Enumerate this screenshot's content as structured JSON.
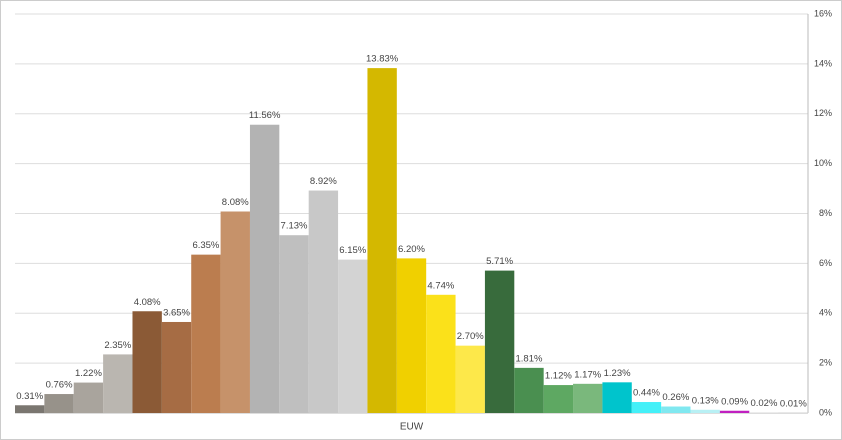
{
  "chart_data": {
    "type": "bar",
    "categories": [
      "EUW"
    ],
    "series": [
      {
        "color": "#7a7670",
        "values": [
          0.31
        ],
        "value_labels": [
          "0.31%"
        ]
      },
      {
        "color": "#97928a",
        "values": [
          0.76
        ],
        "value_labels": [
          "0.76%"
        ]
      },
      {
        "color": "#a9a49d",
        "values": [
          1.22
        ],
        "value_labels": [
          "1.22%"
        ]
      },
      {
        "color": "#bab6b0",
        "values": [
          2.35
        ],
        "value_labels": [
          "2.35%"
        ]
      },
      {
        "color": "#8b5a36",
        "values": [
          4.08
        ],
        "value_labels": [
          "4.08%"
        ]
      },
      {
        "color": "#a66c44",
        "values": [
          3.65
        ],
        "value_labels": [
          "3.65%"
        ]
      },
      {
        "color": "#bb7d4f",
        "values": [
          6.35
        ],
        "value_labels": [
          "6.35%"
        ]
      },
      {
        "color": "#c6926a",
        "values": [
          8.08
        ],
        "value_labels": [
          "8.08%"
        ]
      },
      {
        "color": "#b3b3b3",
        "values": [
          11.56
        ],
        "value_labels": [
          "11.56%"
        ]
      },
      {
        "color": "#bfbfbf",
        "values": [
          7.13
        ],
        "value_labels": [
          "7.13%"
        ]
      },
      {
        "color": "#c8c8c8",
        "values": [
          8.92
        ],
        "value_labels": [
          "8.92%"
        ]
      },
      {
        "color": "#d3d3d3",
        "values": [
          6.15
        ],
        "value_labels": [
          "6.15%"
        ]
      },
      {
        "color": "#d4b800",
        "values": [
          13.83
        ],
        "value_labels": [
          "13.83%"
        ]
      },
      {
        "color": "#f0d000",
        "values": [
          6.2
        ],
        "value_labels": [
          "6.20%"
        ]
      },
      {
        "color": "#fbe11a",
        "values": [
          4.74
        ],
        "value_labels": [
          "4.74%"
        ]
      },
      {
        "color": "#fde84a",
        "values": [
          2.7
        ],
        "value_labels": [
          "2.70%"
        ]
      },
      {
        "color": "#386b3c",
        "values": [
          5.71
        ],
        "value_labels": [
          "5.71%"
        ]
      },
      {
        "color": "#4a8f50",
        "values": [
          1.81
        ],
        "value_labels": [
          "1.81%"
        ]
      },
      {
        "color": "#5ea862",
        "values": [
          1.12
        ],
        "value_labels": [
          "1.12%"
        ]
      },
      {
        "color": "#7ab87c",
        "values": [
          1.17
        ],
        "value_labels": [
          "1.17%"
        ]
      },
      {
        "color": "#00c4cc",
        "values": [
          1.23
        ],
        "value_labels": [
          "1.23%"
        ]
      },
      {
        "color": "#44f0f8",
        "values": [
          0.44
        ],
        "value_labels": [
          "0.44%"
        ]
      },
      {
        "color": "#80e8f0",
        "values": [
          0.26
        ],
        "value_labels": [
          "0.26%"
        ]
      },
      {
        "color": "#b8f0f4",
        "values": [
          0.13
        ],
        "value_labels": [
          "0.13%"
        ]
      },
      {
        "color": "#c020c0",
        "values": [
          0.09
        ],
        "value_labels": [
          "0.09%"
        ]
      },
      {
        "color": "#d8d8d8",
        "values": [
          0.02
        ],
        "value_labels": [
          "0.02%"
        ]
      },
      {
        "color": "#e4e4e4",
        "values": [
          0.01
        ],
        "value_labels": [
          "0.01%"
        ]
      }
    ],
    "ylim": [
      0,
      16
    ],
    "yticks": [
      {
        "value": 0,
        "label": "0%"
      },
      {
        "value": 2,
        "label": "2%"
      },
      {
        "value": 4,
        "label": "4%"
      },
      {
        "value": 6,
        "label": "6%"
      },
      {
        "value": 8,
        "label": "8%"
      },
      {
        "value": 10,
        "label": "10%"
      },
      {
        "value": 12,
        "label": "12%"
      },
      {
        "value": 14,
        "label": "14%"
      },
      {
        "value": 16,
        "label": "16%"
      }
    ],
    "grid": true,
    "y_axis_side": "right"
  }
}
